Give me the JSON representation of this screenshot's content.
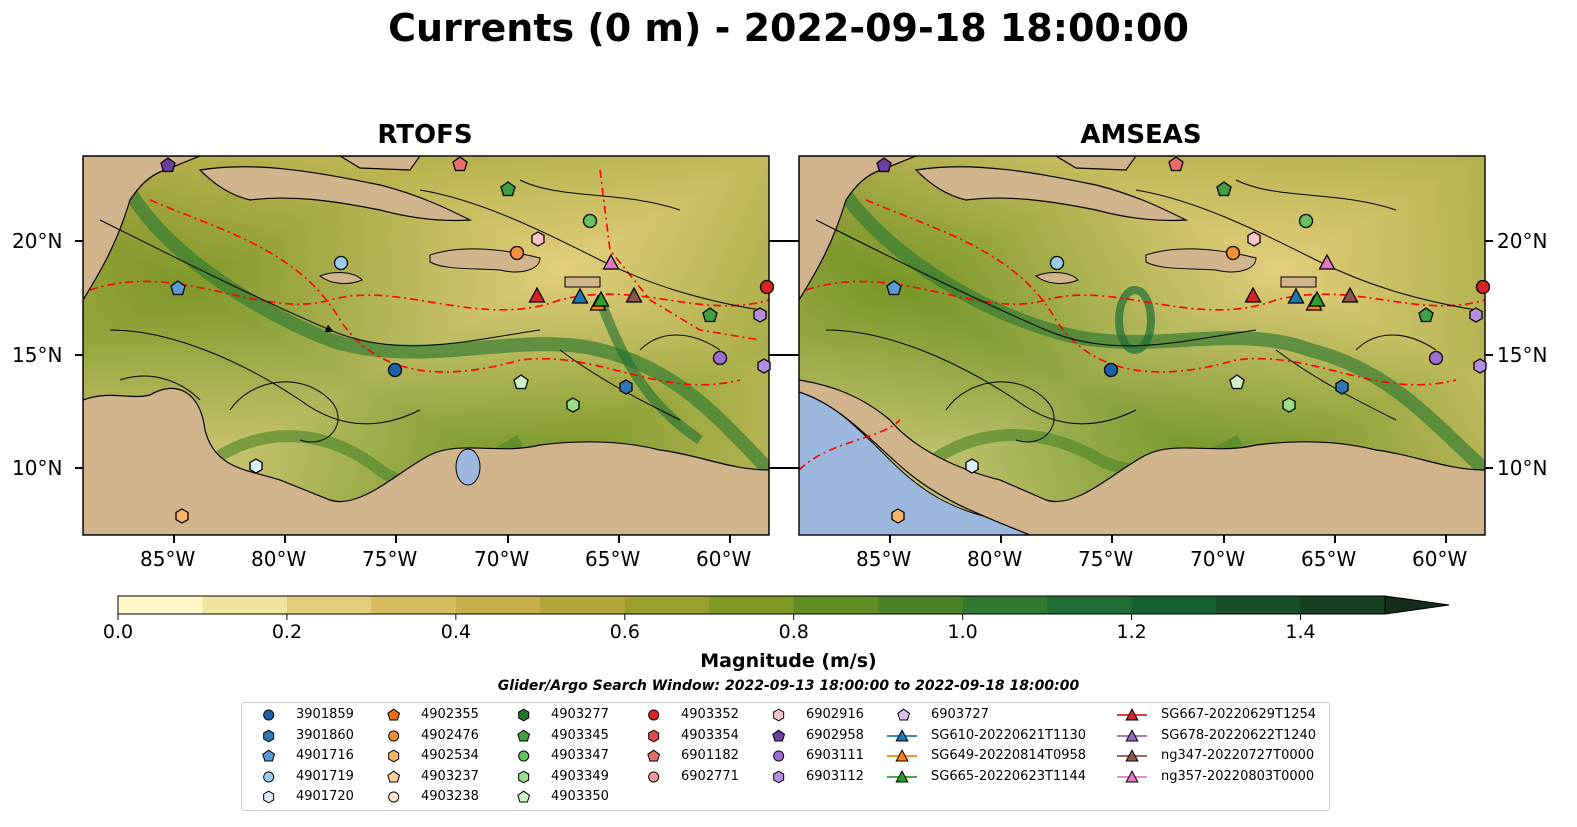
{
  "title": "Currents (0 m) - 2022-09-18 18:00:00",
  "panels": [
    {
      "title": "RTOFS"
    },
    {
      "title": "AMSEAS"
    }
  ],
  "axes": {
    "lon_labels": [
      "85°W",
      "80°W",
      "75°W",
      "70°W",
      "65°W",
      "60°W"
    ],
    "lat_labels": [
      "20°N",
      "15°N",
      "10°N"
    ]
  },
  "colorbar": {
    "label": "Magnitude (m/s)",
    "ticks": [
      "0.0",
      "0.2",
      "0.4",
      "0.6",
      "0.8",
      "1.0",
      "1.2",
      "1.4"
    ],
    "range": [
      0,
      1.5
    ],
    "extend": "max",
    "colors": [
      "#fef7c6",
      "#f1e3a0",
      "#e3cd7c",
      "#d8bc5f",
      "#c9ad48",
      "#b3a33a",
      "#99a02d",
      "#7f9a24",
      "#5f8f24",
      "#4a8427",
      "#2f7a31",
      "#1f6e34",
      "#165f31",
      "#155029",
      "#163f24",
      "#172d1b"
    ]
  },
  "search_window": "Glider/Argo Search Window: 2022-09-13 18:00:00 to 2022-09-18 18:00:00",
  "legend": [
    {
      "label": "3901859",
      "marker": "circle",
      "color": "#1f5fa8"
    },
    {
      "label": "3901860",
      "marker": "hexagon",
      "color": "#2f78b8"
    },
    {
      "label": "4901716",
      "marker": "pentagon",
      "color": "#5b9bd5"
    },
    {
      "label": "4901719",
      "marker": "circle",
      "color": "#9ccaf0"
    },
    {
      "label": "4901720",
      "marker": "hexagon",
      "color": "#ddeeff"
    },
    {
      "label": "4902355",
      "marker": "pentagon",
      "color": "#e8700f"
    },
    {
      "label": "4902476",
      "marker": "circle",
      "color": "#f38f38"
    },
    {
      "label": "4902534",
      "marker": "hexagon",
      "color": "#f7b46a"
    },
    {
      "label": "4903237",
      "marker": "pentagon",
      "color": "#fbcf9d"
    },
    {
      "label": "4903238",
      "marker": "circle",
      "color": "#fde6cb"
    },
    {
      "label": "4903277",
      "marker": "hexagon",
      "color": "#1e7a2a"
    },
    {
      "label": "4903345",
      "marker": "pentagon",
      "color": "#3fa043"
    },
    {
      "label": "4903347",
      "marker": "circle",
      "color": "#66c15f"
    },
    {
      "label": "4903349",
      "marker": "hexagon",
      "color": "#9bdc8d"
    },
    {
      "label": "4903350",
      "marker": "pentagon",
      "color": "#cff3c4"
    },
    {
      "label": "4903352",
      "marker": "circle",
      "color": "#d62424"
    },
    {
      "label": "4903354",
      "marker": "hexagon",
      "color": "#e04a52"
    },
    {
      "label": "6901182",
      "marker": "pentagon",
      "color": "#ea6e6e"
    },
    {
      "label": "6902771",
      "marker": "circle",
      "color": "#f29a97"
    },
    {
      "label": "6902916",
      "marker": "hexagon",
      "color": "#f9c6c4"
    },
    {
      "label": "6902958",
      "marker": "pentagon",
      "color": "#6b3fa0"
    },
    {
      "label": "6903111",
      "marker": "circle",
      "color": "#9b6fcf"
    },
    {
      "label": "6903112",
      "marker": "hexagon",
      "color": "#b48ede"
    },
    {
      "label": "6903727",
      "marker": "pentagon",
      "color": "#d9c2f0"
    },
    {
      "label": "SG610-20220621T1130",
      "marker": "triangle-line",
      "color": "#1f77b4"
    },
    {
      "label": "SG649-20220814T0958",
      "marker": "triangle-line",
      "color": "#ff7f0e"
    },
    {
      "label": "SG665-20220623T1144",
      "marker": "triangle-line",
      "color": "#2ca02c"
    },
    {
      "label": "SG667-20220629T1254",
      "marker": "triangle-line",
      "color": "#d62728"
    },
    {
      "label": "SG678-20220622T1240",
      "marker": "triangle-line",
      "color": "#9467bd"
    },
    {
      "label": "ng347-20220727T0000",
      "marker": "triangle-line",
      "color": "#8c564b"
    },
    {
      "label": "ng357-20220803T0000",
      "marker": "triangle-line",
      "color": "#e377c2"
    }
  ],
  "map_colors": {
    "land": "#d2b48c",
    "ocean_pacific": "#9bb7dd",
    "eez": "#ff0000",
    "borders": "#000000"
  }
}
